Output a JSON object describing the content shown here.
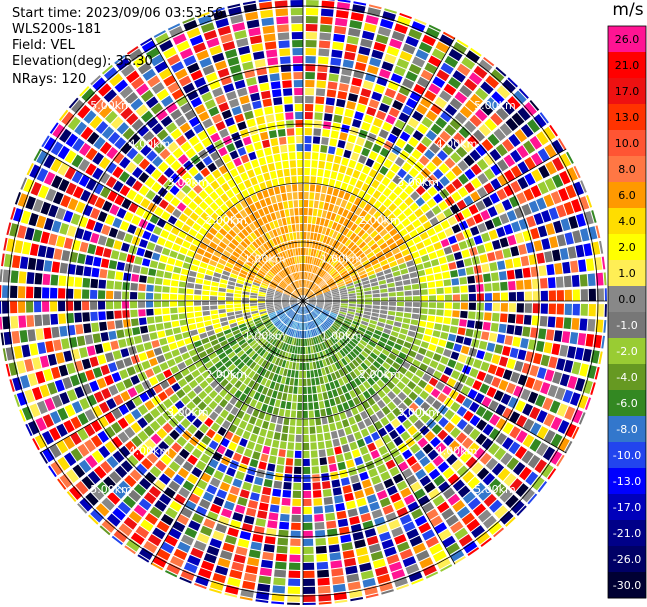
{
  "header": {
    "start_time": "Start time: 2023/09/06 03:53:56",
    "instrument": "WLS200s-181",
    "field": "Field: VEL",
    "elevation": "Elevation(deg): 35.30",
    "nrays": "NRays: 120"
  },
  "colorbar": {
    "unit": "m/s",
    "labels": [
      "26.0",
      "21.0",
      "17.0",
      "13.0",
      "10.0",
      "8.0",
      "6.0",
      "4.0",
      "2.0",
      "1.0",
      "0.0",
      "-1.0",
      "-2.0",
      "-4.0",
      "-6.0",
      "-8.0",
      "-10.0",
      "-13.0",
      "-17.0",
      "-21.0",
      "-26.0",
      "-30.0"
    ],
    "colors": [
      "#ff1493",
      "#ff0000",
      "#ee1111",
      "#ff3300",
      "#ff5533",
      "#ff7744",
      "#ff9900",
      "#ffdd00",
      "#ffff00",
      "#ffee55",
      "#888888",
      "#777777",
      "#99cc33",
      "#669922",
      "#338822",
      "#3377cc",
      "#2244ee",
      "#0000ff",
      "#0000bb",
      "#000088",
      "#000066",
      "#000033"
    ]
  },
  "chart_data": {
    "type": "ppi",
    "field": "VEL",
    "units": "m/s",
    "nrays": 120,
    "range_ring_labels": [
      "1.00km",
      "2.00km",
      "3.00km",
      "4.00km",
      "5.00km"
    ],
    "regions": [
      {
        "range_km": [
          0,
          0.6
        ],
        "sector": "north",
        "velocity_ms": 6
      },
      {
        "range_km": [
          0,
          0.6
        ],
        "sector": "south",
        "velocity_ms": -8
      },
      {
        "range_km": [
          0.6,
          2.0
        ],
        "sector": "north",
        "velocity_ms": 3
      },
      {
        "range_km": [
          0.6,
          2.0
        ],
        "sector": "east",
        "velocity_ms": 0
      },
      {
        "range_km": [
          0.6,
          2.0
        ],
        "sector": "south",
        "velocity_ms": -5
      },
      {
        "range_km": [
          2.0,
          2.5
        ],
        "sector": "all",
        "velocity_ms": 2
      },
      {
        "range_km": [
          2.5,
          5.6
        ],
        "sector": "all",
        "velocity_ms": "noise"
      }
    ]
  }
}
